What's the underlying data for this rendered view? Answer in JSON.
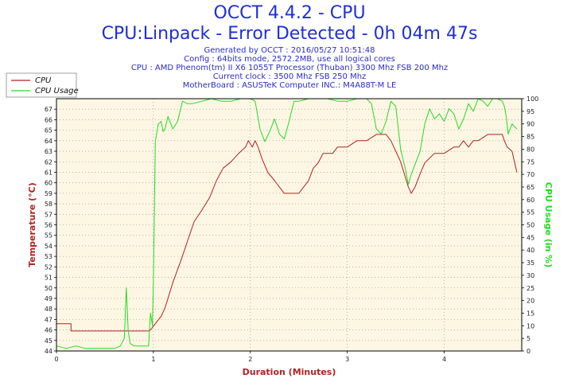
{
  "header": {
    "title": "OCCT 4.4.2 - CPU",
    "subtitle": "CPU:Linpack - Error Detected - 0h 04m 47s",
    "info_lines": [
      "Generated by OCCT : 2016/05/27 10:51:48",
      "Config : 64bits mode, 2572.2MB, use all logical cores",
      "CPU : AMD Phenom(tm) II X6 1055T Processor (Thuban) 3300 Mhz FSB 200 Mhz",
      "Current clock : 3500 Mhz FSB 250 Mhz",
      "MotherBoard : ASUSTeK Computer INC.: M4A88T-M LE"
    ]
  },
  "colors": {
    "cpu": "#b22222",
    "usage": "#22dd22",
    "plot_bg": "#fdf6e3",
    "title": "#1f2fd6"
  },
  "chart_data": {
    "type": "line",
    "xlabel": "Duration (Minutes)",
    "ylabel_left": "Temperature (°C)",
    "ylabel_right": "CPU Usage (in %)",
    "xlim": [
      0,
      4.8
    ],
    "ylim_left": [
      44,
      68
    ],
    "ylim_right": [
      0,
      100
    ],
    "x_ticks": [
      0,
      1,
      2,
      3,
      4
    ],
    "y_ticks_left": [
      44,
      45,
      46,
      47,
      48,
      49,
      50,
      51,
      52,
      53,
      54,
      55,
      56,
      57,
      58,
      59,
      60,
      61,
      62,
      63,
      64,
      65,
      66,
      67
    ],
    "y_ticks_right": [
      0,
      5,
      10,
      15,
      20,
      25,
      30,
      35,
      40,
      45,
      50,
      55,
      60,
      65,
      70,
      75,
      80,
      85,
      90,
      95,
      100
    ],
    "grid": true,
    "legend_position": "top-left",
    "series": [
      {
        "name": "CPU",
        "axis": "left",
        "x": [
          0,
          0.15,
          0.15,
          0.95,
          0.97,
          1.02,
          1.08,
          1.12,
          1.2,
          1.28,
          1.35,
          1.42,
          1.5,
          1.58,
          1.65,
          1.72,
          1.8,
          1.88,
          1.95,
          1.98,
          2.02,
          2.05,
          2.08,
          2.12,
          2.18,
          2.25,
          2.3,
          2.35,
          2.4,
          2.5,
          2.55,
          2.6,
          2.65,
          2.7,
          2.75,
          2.85,
          2.9,
          3.0,
          3.1,
          3.2,
          3.3,
          3.4,
          3.45,
          3.5,
          3.55,
          3.6,
          3.63,
          3.66,
          3.7,
          3.75,
          3.8,
          3.9,
          4.0,
          4.1,
          4.15,
          4.2,
          4.25,
          4.3,
          4.35,
          4.45,
          4.5,
          4.55,
          4.6,
          4.62,
          4.65,
          4.7,
          4.75
        ],
        "values": [
          46.6,
          46.6,
          45.9,
          45.9,
          46.0,
          46.6,
          47.3,
          48.1,
          50.5,
          52.5,
          54.4,
          56.3,
          57.4,
          58.6,
          60.2,
          61.4,
          62.0,
          62.8,
          63.4,
          64.0,
          63.4,
          64.0,
          63.4,
          62.3,
          61.0,
          60.2,
          59.6,
          59.0,
          59.0,
          59.0,
          59.6,
          60.2,
          61.4,
          61.9,
          62.8,
          62.8,
          63.4,
          63.4,
          64.0,
          64.0,
          64.6,
          64.6,
          64.0,
          63.0,
          62.0,
          60.5,
          59.6,
          59.0,
          59.6,
          60.8,
          61.9,
          62.8,
          62.8,
          63.4,
          63.4,
          64.0,
          63.4,
          64.0,
          64.0,
          64.6,
          64.6,
          64.6,
          64.6,
          64.0,
          63.4,
          63.0,
          61.0
        ]
      },
      {
        "name": "CPU Usage",
        "axis": "right",
        "x": [
          0,
          0.1,
          0.2,
          0.3,
          0.4,
          0.5,
          0.6,
          0.66,
          0.7,
          0.72,
          0.74,
          0.76,
          0.8,
          0.85,
          0.9,
          0.95,
          0.97,
          0.99,
          1.0,
          1.02,
          1.05,
          1.08,
          1.1,
          1.12,
          1.15,
          1.2,
          1.25,
          1.3,
          1.35,
          1.4,
          1.5,
          1.6,
          1.7,
          1.8,
          1.9,
          2.0,
          2.05,
          2.1,
          2.15,
          2.2,
          2.25,
          2.3,
          2.35,
          2.4,
          2.45,
          2.5,
          2.6,
          2.7,
          2.8,
          2.9,
          3.0,
          3.1,
          3.2,
          3.25,
          3.3,
          3.35,
          3.4,
          3.45,
          3.5,
          3.55,
          3.6,
          3.63,
          3.66,
          3.7,
          3.75,
          3.8,
          3.85,
          3.9,
          3.95,
          4.0,
          4.05,
          4.1,
          4.15,
          4.2,
          4.25,
          4.3,
          4.35,
          4.4,
          4.45,
          4.5,
          4.55,
          4.6,
          4.62,
          4.64,
          4.66,
          4.7,
          4.75
        ],
        "values": [
          2,
          1,
          2,
          1,
          1,
          1,
          1,
          2,
          5,
          25,
          8,
          3,
          2,
          2,
          2,
          2,
          15,
          10,
          28,
          83,
          90,
          91,
          87,
          88,
          93,
          88,
          91,
          99,
          98,
          98,
          99,
          100,
          99,
          99,
          100,
          100,
          99,
          88,
          83,
          87,
          92,
          86,
          84,
          91,
          99,
          99,
          100,
          100,
          100,
          99,
          99,
          100,
          100,
          98,
          88,
          86,
          91,
          99,
          97,
          80,
          72,
          66,
          70,
          74,
          79,
          90,
          96,
          92,
          94,
          91,
          96,
          94,
          88,
          92,
          98,
          95,
          100,
          99,
          97,
          100,
          100,
          99,
          97,
          93,
          86,
          90,
          88
        ]
      }
    ]
  }
}
